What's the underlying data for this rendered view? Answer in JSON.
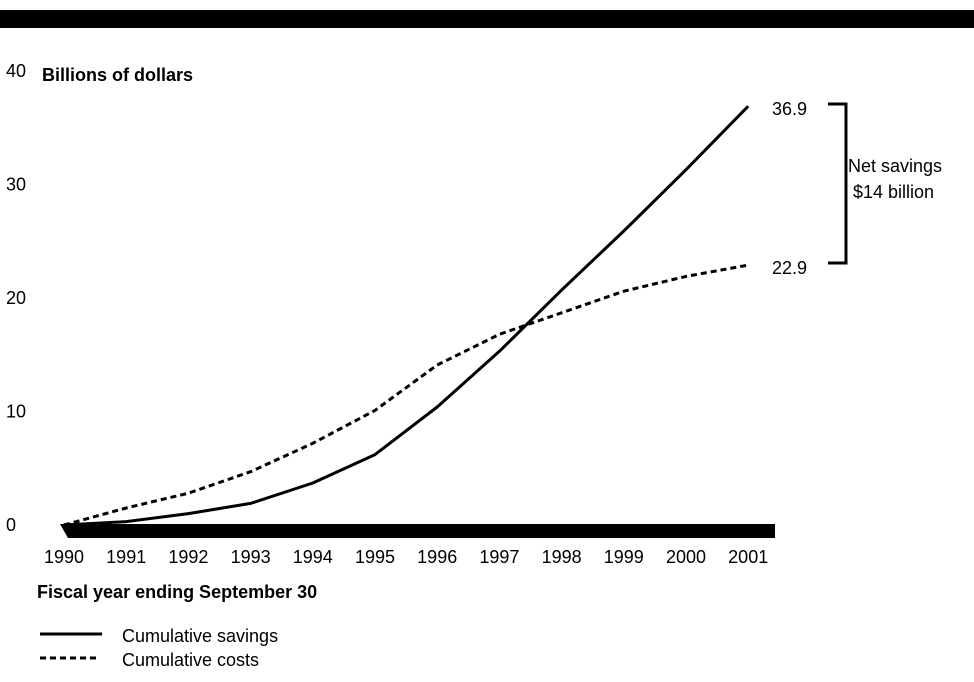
{
  "chart_data": {
    "type": "line",
    "ylabel": "Billions of dollars",
    "xlabel": "Fiscal year ending September 30",
    "x": [
      "1990",
      "1991",
      "1992",
      "1993",
      "1994",
      "1995",
      "1996",
      "1997",
      "1998",
      "1999",
      "2000",
      "2001"
    ],
    "ylim": [
      0,
      40
    ],
    "yticks": [
      "0",
      "10",
      "20",
      "30",
      "40"
    ],
    "series": [
      {
        "name": "Cumulative savings",
        "style": "solid",
        "values": [
          0,
          0.3,
          1.0,
          1.9,
          3.7,
          6.2,
          10.4,
          15.3,
          20.7,
          25.9,
          31.3,
          36.9
        ]
      },
      {
        "name": "Cumulative costs",
        "style": "dotted",
        "values": [
          0,
          1.5,
          2.8,
          4.7,
          7.2,
          10.1,
          14.1,
          16.8,
          18.7,
          20.6,
          21.9,
          22.9
        ]
      }
    ],
    "end_labels": {
      "savings": "36.9",
      "costs": "22.9"
    },
    "bracket_label": [
      "Net savings",
      "$14 billion"
    ],
    "colors": {
      "line": "#000000",
      "banner": "#000000",
      "background": "#ffffff"
    }
  }
}
